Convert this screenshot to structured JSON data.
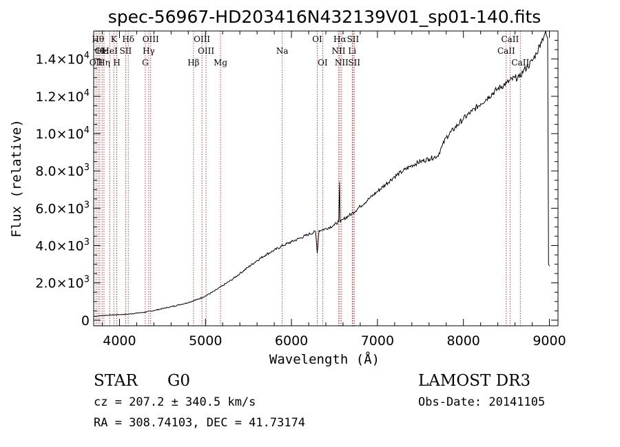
{
  "chart_data": {
    "type": "line",
    "title": "spec-56967-HD203416N432139V01_sp01-140.fits",
    "xlabel": "Wavelength (Å)",
    "ylabel": "Flux (relative)",
    "xlim": [
      3700,
      9100
    ],
    "ylim": [
      -300,
      15500
    ],
    "x_ticks": [
      4000,
      5000,
      6000,
      7000,
      8000,
      9000
    ],
    "x_tick_labels": [
      "4000",
      "5000",
      "6000",
      "7000",
      "8000",
      "9000"
    ],
    "y_ticks": [
      0,
      2000,
      4000,
      6000,
      8000,
      10000,
      12000,
      14000
    ],
    "y_tick_labels": [
      {
        "mant": "0",
        "exp": ""
      },
      {
        "mant": "2.0×10",
        "exp": "3"
      },
      {
        "mant": "4.0×10",
        "exp": "3"
      },
      {
        "mant": "6.0×10",
        "exp": "3"
      },
      {
        "mant": "8.0×10",
        "exp": "3"
      },
      {
        "mant": "1.0×10",
        "exp": "4"
      },
      {
        "mant": "1.2×10",
        "exp": "4"
      },
      {
        "mant": "1.4×10",
        "exp": "4"
      }
    ],
    "series": [
      {
        "name": "flux",
        "x": [
          3700,
          3800,
          3900,
          4000,
          4100,
          4200,
          4300,
          4400,
          4500,
          4600,
          4700,
          4800,
          4900,
          5000,
          5100,
          5200,
          5300,
          5400,
          5500,
          5600,
          5700,
          5800,
          5900,
          6000,
          6100,
          6200,
          6280,
          6300,
          6320,
          6400,
          6500,
          6550,
          6560,
          6565,
          6570,
          6600,
          6700,
          6800,
          6900,
          7000,
          7100,
          7200,
          7300,
          7400,
          7500,
          7600,
          7700,
          7750,
          7800,
          7900,
          8000,
          8100,
          8200,
          8300,
          8400,
          8500,
          8600,
          8650,
          8700,
          8750,
          8800,
          8850,
          8900,
          8950,
          8980,
          8990,
          9000
        ],
        "y": [
          200,
          250,
          280,
          300,
          320,
          380,
          430,
          520,
          620,
          720,
          830,
          950,
          1100,
          1300,
          1550,
          1850,
          2150,
          2500,
          2850,
          3200,
          3500,
          3750,
          4000,
          4200,
          4400,
          4600,
          4750,
          3600,
          4800,
          4900,
          5100,
          5300,
          7400,
          5400,
          5250,
          5400,
          5700,
          6100,
          6500,
          6900,
          7300,
          7700,
          8000,
          8300,
          8500,
          8650,
          8800,
          9300,
          9800,
          10300,
          10800,
          11200,
          11600,
          12000,
          12400,
          12700,
          13000,
          13000,
          13400,
          13600,
          13900,
          14300,
          14900,
          15400,
          15100,
          3000,
          2900
        ]
      }
    ],
    "spectral_lines": [
      {
        "wavelength": 3727,
        "label": "OII",
        "row": 3
      },
      {
        "wavelength": 3750,
        "label": "Hθ",
        "row": 1
      },
      {
        "wavelength": 3771,
        "label": "OI",
        "row": 2
      },
      {
        "wavelength": 3798,
        "label": "Hε",
        "row": 2
      },
      {
        "wavelength": 3820,
        "label": "Hη",
        "row": 3
      },
      {
        "wavelength": 3889,
        "label": "HeI",
        "row": 2
      },
      {
        "wavelength": 3934,
        "label": "K",
        "row": 1
      },
      {
        "wavelength": 3969,
        "label": "H",
        "row": 3
      },
      {
        "wavelength": 4072,
        "label": "SII",
        "row": 2
      },
      {
        "wavelength": 4102,
        "label": "Hδ",
        "row": 1
      },
      {
        "wavelength": 4300,
        "label": "G",
        "row": 3
      },
      {
        "wavelength": 4340,
        "label": "Hγ",
        "row": 2
      },
      {
        "wavelength": 4363,
        "label": "OIII",
        "row": 1
      },
      {
        "wavelength": 4861,
        "label": "Hβ",
        "row": 3
      },
      {
        "wavelength": 4959,
        "label": "OIII",
        "row": 1
      },
      {
        "wavelength": 5007,
        "label": "OIII",
        "row": 2
      },
      {
        "wavelength": 5175,
        "label": "Mg",
        "row": 3
      },
      {
        "wavelength": 5893,
        "label": "Na",
        "row": 2
      },
      {
        "wavelength": 6300,
        "label": "OI",
        "row": 1
      },
      {
        "wavelength": 6363,
        "label": "OI",
        "row": 3
      },
      {
        "wavelength": 6548,
        "label": "NII",
        "row": 2
      },
      {
        "wavelength": 6563,
        "label": "Hα",
        "row": 1
      },
      {
        "wavelength": 6583,
        "label": "NII",
        "row": 3
      },
      {
        "wavelength": 6707,
        "label": "Li",
        "row": 2
      },
      {
        "wavelength": 6716,
        "label": "SII",
        "row": 1
      },
      {
        "wavelength": 6731,
        "label": "SII",
        "row": 3
      },
      {
        "wavelength": 8498,
        "label": "CaII",
        "row": 2
      },
      {
        "wavelength": 8542,
        "label": "CaII",
        "row": 1
      },
      {
        "wavelength": 8662,
        "label": "CaII",
        "row": 3
      }
    ]
  },
  "info": {
    "object_class": "STAR",
    "subclass": "G0",
    "survey": "LAMOST DR3",
    "cz": "cz = 207.2 ± 340.5 km/s",
    "obs_date": "Obs-Date: 20141105",
    "coords": "RA = 308.74103, DEC =  41.73174"
  },
  "colors": {
    "line": "#000000",
    "marker": "#cc0000",
    "background": "#ffffff"
  }
}
